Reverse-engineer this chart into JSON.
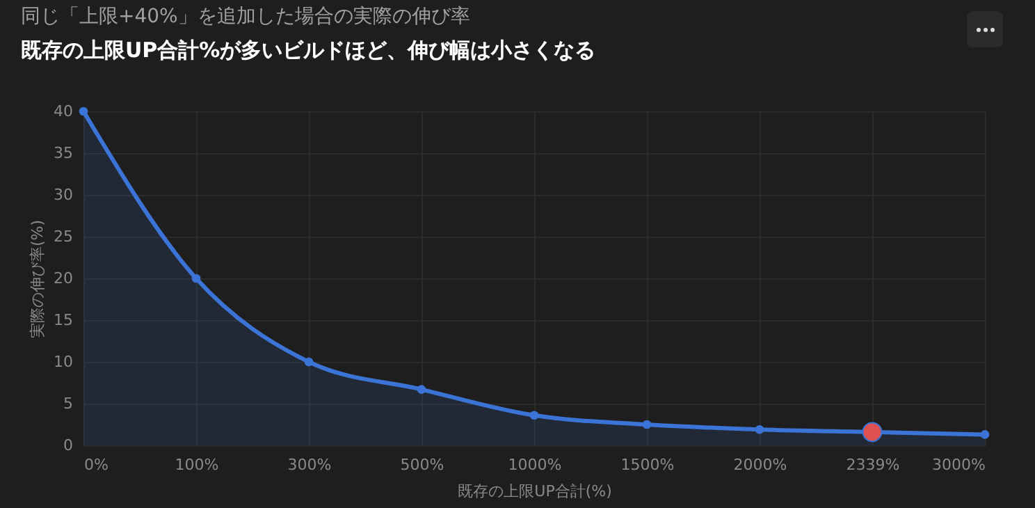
{
  "chart_data": {
    "type": "area",
    "title": "同じ「上限+40%」を追加した場合の実際の伸び率",
    "subtitle": "既存の上限UP合計%が多いビルドほど、伸び幅は小さくなる",
    "xlabel": "既存の上限UP合計(%)",
    "ylabel": "実際の伸び率(%)",
    "categories": [
      "0%",
      "100%",
      "300%",
      "500%",
      "1000%",
      "1500%",
      "2000%",
      "2339%",
      "3000%"
    ],
    "series": [
      {
        "color": "#3b74d6",
        "values": [
          40,
          20,
          10,
          6.7,
          3.6,
          2.5,
          1.9,
          1.6,
          1.3
        ]
      },
      {
        "type": "scatter",
        "color": "#e05252",
        "x": [
          "2339%"
        ],
        "values": [
          1.6
        ]
      }
    ],
    "ylim": [
      0,
      40
    ],
    "yticks": [
      0,
      5,
      10,
      15,
      20,
      25,
      30,
      35,
      40
    ],
    "grid": true,
    "marker": "circle"
  }
}
